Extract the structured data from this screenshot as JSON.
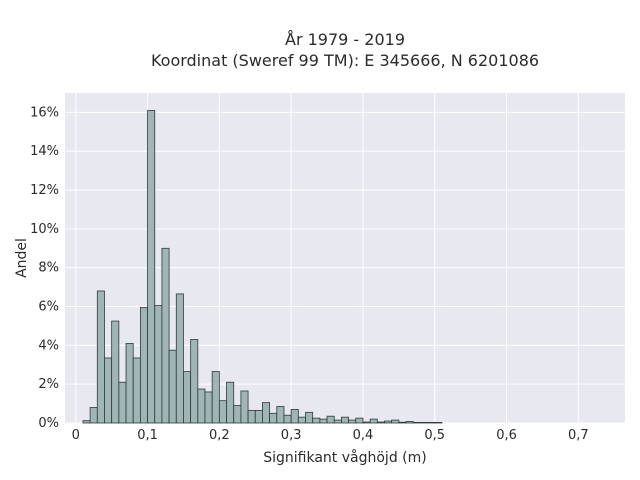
{
  "chart_data": {
    "type": "bar",
    "title": "År 1979 - 2019",
    "subtitle": "Koordinat (Sweref 99 TM): E 345666, N 6201086",
    "xlabel": "Signifikant våghöjd (m)",
    "ylabel": "Andel",
    "xlim": [
      -0.015,
      0.765
    ],
    "ylim": [
      0,
      0.17
    ],
    "grid": true,
    "colors": {
      "bar_fill": "#9fb5b6",
      "bar_stroke": "#2f3a3a",
      "plot_bg": "#e8e8f0",
      "grid": "#ffffff"
    },
    "x_ticks": [
      {
        "value": 0,
        "label": "0"
      },
      {
        "value": 0.1,
        "label": "0,1"
      },
      {
        "value": 0.2,
        "label": "0,2"
      },
      {
        "value": 0.3,
        "label": "0,3"
      },
      {
        "value": 0.4,
        "label": "0,4"
      },
      {
        "value": 0.5,
        "label": "0,5"
      },
      {
        "value": 0.6,
        "label": "0,6"
      },
      {
        "value": 0.7,
        "label": "0,7"
      }
    ],
    "y_ticks": [
      {
        "value": 0,
        "label": "0%"
      },
      {
        "value": 0.02,
        "label": "2%"
      },
      {
        "value": 0.04,
        "label": "4%"
      },
      {
        "value": 0.06,
        "label": "6%"
      },
      {
        "value": 0.08,
        "label": "8%"
      },
      {
        "value": 0.1,
        "label": "10%"
      },
      {
        "value": 0.12,
        "label": "12%"
      },
      {
        "value": 0.14,
        "label": "14%"
      },
      {
        "value": 0.16,
        "label": "16%"
      }
    ],
    "bin_start": 0.01,
    "bin_width": 0.01,
    "values": [
      0.0012,
      0.008,
      0.068,
      0.0335,
      0.0525,
      0.021,
      0.041,
      0.0335,
      0.0595,
      0.161,
      0.0605,
      0.09,
      0.0375,
      0.0665,
      0.0265,
      0.043,
      0.0175,
      0.016,
      0.0265,
      0.0115,
      0.021,
      0.009,
      0.0165,
      0.0065,
      0.0065,
      0.0105,
      0.005,
      0.0085,
      0.004,
      0.007,
      0.003,
      0.0055,
      0.0025,
      0.002,
      0.0035,
      0.0015,
      0.003,
      0.0015,
      0.0025,
      0.0005,
      0.002,
      0.0005,
      0.001,
      0.0015,
      0.0004,
      0.0008,
      0.0003,
      0.0003,
      0.0003,
      0.0003
    ]
  }
}
